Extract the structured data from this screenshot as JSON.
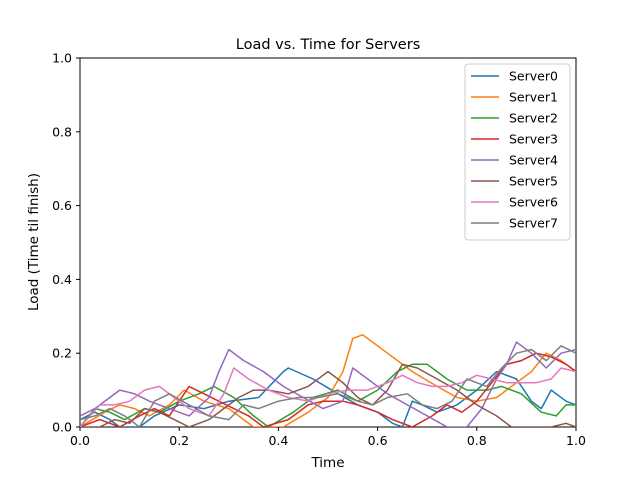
{
  "chart_data": {
    "type": "line",
    "title": "Load vs. Time for Servers",
    "xlabel": "Time",
    "ylabel": "Load (Time til finish)",
    "xlim": [
      0,
      1
    ],
    "ylim": [
      0,
      1
    ],
    "xticks": [
      "0.0",
      "0.2",
      "0.4",
      "0.6",
      "0.8",
      "1.0"
    ],
    "yticks": [
      "0.0",
      "0.2",
      "0.4",
      "0.6",
      "0.8",
      "1.0"
    ],
    "grid": false,
    "legend_position": "top-right",
    "series": [
      {
        "name": "Server0",
        "color": "#1f77b4",
        "points": [
          [
            0.0,
            0.02
          ],
          [
            0.03,
            0.04
          ],
          [
            0.06,
            0.02
          ],
          [
            0.08,
            0.0
          ],
          [
            0.12,
            0.0
          ],
          [
            0.15,
            0.03
          ],
          [
            0.2,
            0.06
          ],
          [
            0.25,
            0.05
          ],
          [
            0.3,
            0.07
          ],
          [
            0.36,
            0.08
          ],
          [
            0.41,
            0.15
          ],
          [
            0.42,
            0.16
          ],
          [
            0.47,
            0.13
          ],
          [
            0.52,
            0.09
          ],
          [
            0.56,
            0.06
          ],
          [
            0.6,
            0.04
          ],
          [
            0.63,
            0.01
          ],
          [
            0.65,
            0.0
          ],
          [
            0.67,
            0.07
          ],
          [
            0.69,
            0.06
          ],
          [
            0.72,
            0.04
          ],
          [
            0.76,
            0.06
          ],
          [
            0.8,
            0.1
          ],
          [
            0.84,
            0.15
          ],
          [
            0.88,
            0.13
          ],
          [
            0.91,
            0.07
          ],
          [
            0.93,
            0.05
          ],
          [
            0.95,
            0.1
          ],
          [
            0.98,
            0.07
          ],
          [
            1.0,
            0.06
          ]
        ]
      },
      {
        "name": "Server1",
        "color": "#ff7f0e",
        "points": [
          [
            0.0,
            0.0
          ],
          [
            0.05,
            0.04
          ],
          [
            0.08,
            0.06
          ],
          [
            0.11,
            0.05
          ],
          [
            0.14,
            0.03
          ],
          [
            0.18,
            0.06
          ],
          [
            0.21,
            0.1
          ],
          [
            0.25,
            0.07
          ],
          [
            0.3,
            0.05
          ],
          [
            0.35,
            0.0
          ],
          [
            0.41,
            0.0
          ],
          [
            0.46,
            0.04
          ],
          [
            0.5,
            0.08
          ],
          [
            0.53,
            0.15
          ],
          [
            0.55,
            0.24
          ],
          [
            0.57,
            0.25
          ],
          [
            0.62,
            0.2
          ],
          [
            0.67,
            0.15
          ],
          [
            0.72,
            0.11
          ],
          [
            0.76,
            0.08
          ],
          [
            0.8,
            0.07
          ],
          [
            0.84,
            0.08
          ],
          [
            0.88,
            0.12
          ],
          [
            0.91,
            0.15
          ],
          [
            0.94,
            0.2
          ],
          [
            0.97,
            0.18
          ],
          [
            1.0,
            0.15
          ]
        ]
      },
      {
        "name": "Server2",
        "color": "#2ca02c",
        "points": [
          [
            0.0,
            0.0
          ],
          [
            0.03,
            0.05
          ],
          [
            0.06,
            0.04
          ],
          [
            0.09,
            0.02
          ],
          [
            0.13,
            0.05
          ],
          [
            0.16,
            0.04
          ],
          [
            0.2,
            0.07
          ],
          [
            0.24,
            0.09
          ],
          [
            0.27,
            0.11
          ],
          [
            0.31,
            0.08
          ],
          [
            0.35,
            0.03
          ],
          [
            0.38,
            0.0
          ],
          [
            0.43,
            0.04
          ],
          [
            0.47,
            0.08
          ],
          [
            0.52,
            0.1
          ],
          [
            0.56,
            0.07
          ],
          [
            0.6,
            0.1
          ],
          [
            0.64,
            0.15
          ],
          [
            0.67,
            0.17
          ],
          [
            0.7,
            0.17
          ],
          [
            0.74,
            0.13
          ],
          [
            0.78,
            0.1
          ],
          [
            0.82,
            0.1
          ],
          [
            0.85,
            0.11
          ],
          [
            0.89,
            0.09
          ],
          [
            0.93,
            0.04
          ],
          [
            0.96,
            0.03
          ],
          [
            0.98,
            0.06
          ],
          [
            1.0,
            0.06
          ]
        ]
      },
      {
        "name": "Server3",
        "color": "#d62728",
        "points": [
          [
            0.0,
            0.0
          ],
          [
            0.04,
            0.02
          ],
          [
            0.08,
            0.0
          ],
          [
            0.12,
            0.03
          ],
          [
            0.15,
            0.05
          ],
          [
            0.18,
            0.03
          ],
          [
            0.22,
            0.11
          ],
          [
            0.25,
            0.09
          ],
          [
            0.28,
            0.07
          ],
          [
            0.31,
            0.05
          ],
          [
            0.34,
            0.03
          ],
          [
            0.37,
            0.0
          ],
          [
            0.42,
            0.02
          ],
          [
            0.46,
            0.06
          ],
          [
            0.49,
            0.07
          ],
          [
            0.53,
            0.07
          ],
          [
            0.56,
            0.06
          ],
          [
            0.6,
            0.04
          ],
          [
            0.63,
            0.02
          ],
          [
            0.67,
            0.0
          ],
          [
            0.71,
            0.03
          ],
          [
            0.74,
            0.06
          ],
          [
            0.77,
            0.04
          ],
          [
            0.8,
            0.07
          ],
          [
            0.83,
            0.12
          ],
          [
            0.86,
            0.17
          ],
          [
            0.89,
            0.18
          ],
          [
            0.92,
            0.2
          ],
          [
            0.95,
            0.19
          ],
          [
            0.98,
            0.17
          ],
          [
            1.0,
            0.15
          ]
        ]
      },
      {
        "name": "Server4",
        "color": "#9467bd",
        "points": [
          [
            0.0,
            0.03
          ],
          [
            0.03,
            0.05
          ],
          [
            0.06,
            0.08
          ],
          [
            0.08,
            0.1
          ],
          [
            0.11,
            0.09
          ],
          [
            0.14,
            0.07
          ],
          [
            0.18,
            0.05
          ],
          [
            0.22,
            0.03
          ],
          [
            0.26,
            0.08
          ],
          [
            0.28,
            0.15
          ],
          [
            0.3,
            0.21
          ],
          [
            0.33,
            0.18
          ],
          [
            0.37,
            0.15
          ],
          [
            0.41,
            0.11
          ],
          [
            0.45,
            0.08
          ],
          [
            0.49,
            0.05
          ],
          [
            0.53,
            0.07
          ],
          [
            0.55,
            0.16
          ],
          [
            0.58,
            0.13
          ],
          [
            0.62,
            0.09
          ],
          [
            0.66,
            0.06
          ],
          [
            0.7,
            0.03
          ],
          [
            0.74,
            0.0
          ],
          [
            0.78,
            0.0
          ],
          [
            0.81,
            0.05
          ],
          [
            0.84,
            0.13
          ],
          [
            0.86,
            0.17
          ],
          [
            0.88,
            0.23
          ],
          [
            0.91,
            0.2
          ],
          [
            0.94,
            0.16
          ],
          [
            0.97,
            0.2
          ],
          [
            1.0,
            0.21
          ]
        ]
      },
      {
        "name": "Server5",
        "color": "#8c564b",
        "points": [
          [
            0.0,
            0.0
          ],
          [
            0.04,
            0.0
          ],
          [
            0.07,
            0.02
          ],
          [
            0.1,
            0.01
          ],
          [
            0.13,
            0.05
          ],
          [
            0.16,
            0.04
          ],
          [
            0.19,
            0.02
          ],
          [
            0.22,
            0.0
          ],
          [
            0.26,
            0.02
          ],
          [
            0.29,
            0.05
          ],
          [
            0.32,
            0.08
          ],
          [
            0.35,
            0.1
          ],
          [
            0.38,
            0.1
          ],
          [
            0.42,
            0.09
          ],
          [
            0.46,
            0.11
          ],
          [
            0.49,
            0.14
          ],
          [
            0.5,
            0.15
          ],
          [
            0.53,
            0.12
          ],
          [
            0.56,
            0.08
          ],
          [
            0.59,
            0.06
          ],
          [
            0.62,
            0.1
          ],
          [
            0.65,
            0.17
          ],
          [
            0.68,
            0.16
          ],
          [
            0.72,
            0.13
          ],
          [
            0.76,
            0.1
          ],
          [
            0.8,
            0.06
          ],
          [
            0.84,
            0.03
          ],
          [
            0.87,
            0.0
          ],
          [
            0.91,
            0.0
          ],
          [
            0.95,
            0.0
          ],
          [
            0.98,
            0.01
          ],
          [
            1.0,
            0.0
          ]
        ]
      },
      {
        "name": "Server6",
        "color": "#e377c2",
        "points": [
          [
            0.0,
            0.0
          ],
          [
            0.04,
            0.06
          ],
          [
            0.07,
            0.06
          ],
          [
            0.1,
            0.07
          ],
          [
            0.13,
            0.1
          ],
          [
            0.16,
            0.11
          ],
          [
            0.19,
            0.08
          ],
          [
            0.22,
            0.05
          ],
          [
            0.26,
            0.03
          ],
          [
            0.29,
            0.09
          ],
          [
            0.31,
            0.16
          ],
          [
            0.34,
            0.13
          ],
          [
            0.38,
            0.1
          ],
          [
            0.42,
            0.08
          ],
          [
            0.46,
            0.07
          ],
          [
            0.5,
            0.09
          ],
          [
            0.54,
            0.1
          ],
          [
            0.58,
            0.1
          ],
          [
            0.62,
            0.12
          ],
          [
            0.65,
            0.14
          ],
          [
            0.68,
            0.12
          ],
          [
            0.71,
            0.11
          ],
          [
            0.74,
            0.11
          ],
          [
            0.77,
            0.12
          ],
          [
            0.8,
            0.14
          ],
          [
            0.83,
            0.13
          ],
          [
            0.86,
            0.12
          ],
          [
            0.89,
            0.12
          ],
          [
            0.92,
            0.12
          ],
          [
            0.95,
            0.13
          ],
          [
            0.97,
            0.16
          ],
          [
            1.0,
            0.15
          ]
        ]
      },
      {
        "name": "Server7",
        "color": "#7f7f7f",
        "points": [
          [
            0.0,
            0.02
          ],
          [
            0.03,
            0.03
          ],
          [
            0.06,
            0.05
          ],
          [
            0.09,
            0.03
          ],
          [
            0.12,
            0.0
          ],
          [
            0.15,
            0.07
          ],
          [
            0.18,
            0.09
          ],
          [
            0.22,
            0.06
          ],
          [
            0.26,
            0.03
          ],
          [
            0.3,
            0.02
          ],
          [
            0.33,
            0.06
          ],
          [
            0.36,
            0.05
          ],
          [
            0.4,
            0.07
          ],
          [
            0.44,
            0.08
          ],
          [
            0.48,
            0.08
          ],
          [
            0.52,
            0.09
          ],
          [
            0.56,
            0.07
          ],
          [
            0.59,
            0.06
          ],
          [
            0.62,
            0.08
          ],
          [
            0.66,
            0.09
          ],
          [
            0.69,
            0.06
          ],
          [
            0.72,
            0.05
          ],
          [
            0.75,
            0.07
          ],
          [
            0.78,
            0.13
          ],
          [
            0.82,
            0.11
          ],
          [
            0.85,
            0.16
          ],
          [
            0.88,
            0.2
          ],
          [
            0.91,
            0.21
          ],
          [
            0.94,
            0.18
          ],
          [
            0.97,
            0.22
          ],
          [
            1.0,
            0.2
          ]
        ]
      }
    ]
  }
}
